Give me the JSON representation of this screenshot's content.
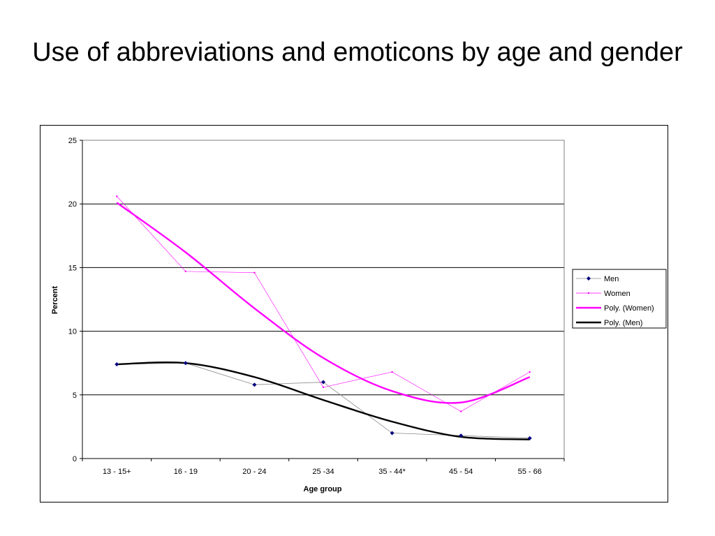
{
  "slide": {
    "title": "Use of abbreviations and emoticons by age and gender"
  },
  "chart_data": {
    "type": "line",
    "title": "",
    "xlabel": "Age group",
    "ylabel": "Percent",
    "ylim": [
      0,
      25
    ],
    "yticks": [
      0,
      5,
      10,
      15,
      20,
      25
    ],
    "categories": [
      "13 - 15+",
      "16 - 19",
      "20 - 24",
      "25 -34",
      "35 - 44*",
      "45 - 54",
      "55 - 66"
    ],
    "grid": "horizontal major gridlines",
    "legend_position": "right",
    "series": [
      {
        "name": "Men",
        "values": [
          7.4,
          7.5,
          5.8,
          6.0,
          2.0,
          1.8,
          1.6
        ],
        "color": "#000080",
        "marker": "diamond"
      },
      {
        "name": "Women",
        "values": [
          20.6,
          14.7,
          14.6,
          5.6,
          6.8,
          3.7,
          6.8
        ],
        "color": "#FF00FF",
        "marker": "dot"
      }
    ],
    "trendlines": [
      {
        "name": "Poly. (Women)",
        "of": "Women",
        "values": [
          20.1,
          16.2,
          11.8,
          7.9,
          5.3,
          4.4,
          6.4
        ],
        "color": "#FF00FF"
      },
      {
        "name": "Poly. (Men)",
        "of": "Men",
        "values": [
          7.4,
          7.5,
          6.4,
          4.6,
          2.9,
          1.7,
          1.5
        ],
        "color": "#000000"
      }
    ]
  }
}
